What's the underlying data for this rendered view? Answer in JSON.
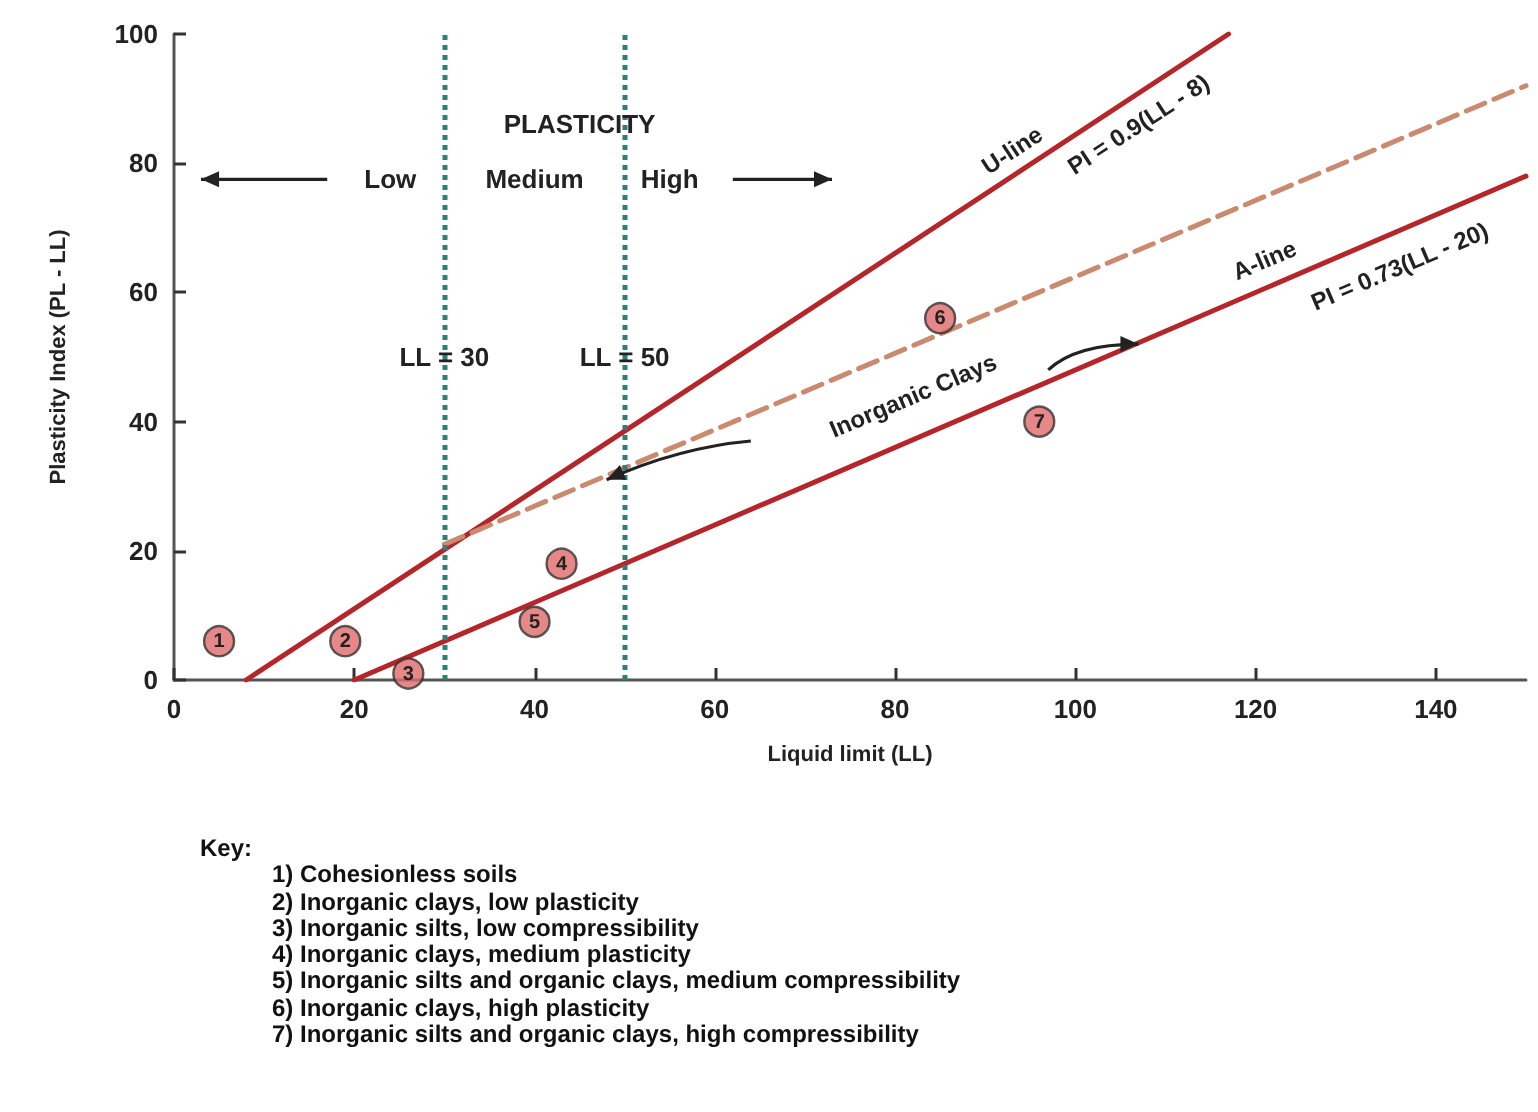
{
  "chart_data": {
    "type": "line",
    "xlabel": "Liquid limit (LL)",
    "ylabel": "Plasticity Index (PL - LL)",
    "xlim": [
      0,
      150
    ],
    "ylim": [
      0,
      100
    ],
    "xticks": [
      0,
      20,
      40,
      60,
      80,
      100,
      120,
      140
    ],
    "yticks": [
      0,
      20,
      40,
      60,
      80,
      100
    ],
    "grid": false,
    "series": [
      {
        "x": [
          8,
          117
        ],
        "values": [
          0,
          100
        ],
        "color": "#b5262a",
        "line_style": "solid"
      },
      {
        "x": [
          20,
          150
        ],
        "values": [
          0,
          78
        ],
        "color": "#b5262a",
        "line_style": "solid"
      },
      {
        "x": [
          30,
          150
        ],
        "values": [
          21,
          92
        ],
        "color": "#c98a70",
        "line_style": "dashed"
      },
      {
        "type": "scatter",
        "x": [
          5,
          19,
          26,
          43,
          40,
          85,
          96
        ],
        "values": [
          6,
          6,
          1,
          18,
          9,
          56,
          40
        ],
        "color": "#e06a6a",
        "marker": "circle"
      }
    ],
    "ref_lines": [
      {
        "axis": "x",
        "value": 30,
        "label": "LL = 30",
        "color": "#2f7f74",
        "line_style": "dotted"
      },
      {
        "axis": "x",
        "value": 50,
        "label": "LL = 50",
        "color": "#2f7f74",
        "line_style": "dotted"
      }
    ],
    "annotations": [
      "PLASTICITY",
      "Low",
      "Medium",
      "High",
      "U-line",
      "PI = 0.9(LL - 8)",
      "A-line",
      "PI = 0.73(LL - 20)",
      "Inorganic Clays",
      {
        "text": "1",
        "x": 5,
        "y": 6
      },
      {
        "text": "2",
        "x": 19,
        "y": 6
      },
      {
        "text": "3",
        "x": 26,
        "y": 1
      },
      {
        "text": "4",
        "x": 43,
        "y": 18
      },
      {
        "text": "5",
        "x": 40,
        "y": 9
      },
      {
        "text": "6",
        "x": 85,
        "y": 56
      },
      {
        "text": "7",
        "x": 96,
        "y": 40
      },
      "Key:",
      "1) Cohesionless soils",
      "2) Inorganic clays, low plasticity",
      "3) Inorganic silts, low compressibility",
      "4) Inorganic clays, medium plasticity",
      "5) Inorganic silts and organic clays, medium compressibility",
      "6) Inorganic clays, high plasticity",
      "7) Inorganic silts and organic clays, high compressibility"
    ]
  }
}
